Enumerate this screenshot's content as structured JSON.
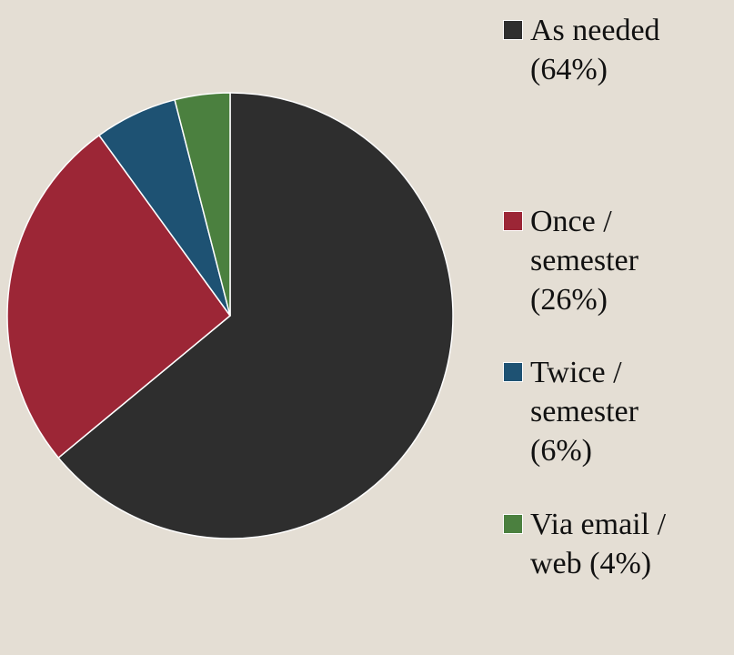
{
  "chart_data": {
    "type": "pie",
    "categories": [
      "As needed (64%)",
      "Once / semester (26%)",
      "Twice / semester (6%)",
      "Via email / web (4%)"
    ],
    "values": [
      64,
      26,
      6,
      4
    ],
    "colors": [
      "#2e2e2e",
      "#9c2636",
      "#1e5273",
      "#4b803f"
    ],
    "legend": "right"
  }
}
